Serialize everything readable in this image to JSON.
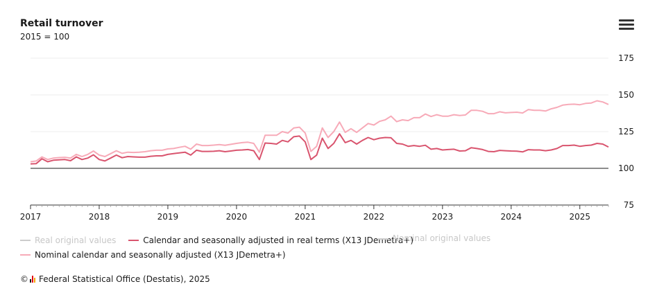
{
  "header": {
    "title": "Retail turnover",
    "subtitle": "2015 = 100"
  },
  "legend": {
    "real_original": "Real original values",
    "real_adjusted": "Calendar and seasonally adjusted in real terms (X13 JDemetra+)",
    "nominal_original": "Nominal original values",
    "nominal_adjusted": "Nominal calendar and seasonally adjusted (X13 JDemetra+)"
  },
  "credits": {
    "text": "Federal Statistical Office (Destatis), 2025",
    "copyright": "©"
  },
  "colors": {
    "real_adjusted": "#d9546e",
    "nominal_adjusted": "#f7aab8",
    "hidden_series": "#cccccc",
    "gridline": "#ececec",
    "reference_line": "#1a1a1a"
  },
  "chart_data": {
    "type": "line",
    "title": "Retail turnover",
    "subtitle": "2015 = 100",
    "x_start": "2017-01",
    "x_step": "month",
    "x_ticks": [
      "2017",
      "2018",
      "2019",
      "2020",
      "2021",
      "2022",
      "2023",
      "2024",
      "2025"
    ],
    "ylim": [
      75,
      175
    ],
    "y_ticks": [
      75,
      100,
      125,
      150,
      175
    ],
    "reference_line": 100,
    "y_axis_position": "right",
    "grid": true,
    "legend_position": "bottom",
    "series": [
      {
        "name": "Calendar and seasonally adjusted in real terms (X13 JDemetra+)",
        "key": "real_adjusted",
        "values": [
          103,
          103.2,
          106.5,
          104.5,
          105.5,
          105.8,
          106,
          105.2,
          107.8,
          106,
          107,
          109.2,
          106,
          105,
          107,
          109,
          107.2,
          108,
          107.8,
          107.6,
          107.6,
          108.2,
          108.5,
          108.5,
          109.5,
          110,
          110.5,
          111,
          109,
          112.3,
          111.5,
          111.5,
          111.6,
          112,
          111.3,
          111.8,
          112.3,
          112.5,
          112.8,
          112,
          106,
          117.2,
          117,
          116.5,
          119,
          118,
          121.5,
          122,
          118,
          106,
          109,
          120.5,
          113.5,
          117,
          123.5,
          117.5,
          119,
          116.5,
          119,
          121,
          119.5,
          120.5,
          121,
          120.8,
          117,
          116.5,
          115,
          115.5,
          115,
          115.7,
          113,
          113.5,
          112.5,
          112.8,
          113,
          111.8,
          112,
          114,
          113.5,
          112.8,
          111.5,
          111.3,
          112.2,
          112,
          111.8,
          111.7,
          111.2,
          112.7,
          112.5,
          112.5,
          112,
          112.5,
          113.5,
          115.5,
          115.5,
          115.8,
          115,
          115.5,
          115.8,
          117,
          116.5,
          114.5
        ]
      },
      {
        "name": "Nominal calendar and seasonally adjusted (X13 JDemetra+)",
        "key": "nominal_adjusted",
        "values": [
          104.5,
          105,
          107.8,
          106,
          107,
          107.3,
          107.5,
          107,
          109.5,
          108,
          109.5,
          111.8,
          109,
          108,
          110,
          112,
          110.2,
          111,
          110.8,
          111,
          111.3,
          112,
          112.3,
          112.3,
          113.2,
          113.5,
          114.3,
          115,
          113,
          116.5,
          115.5,
          115.5,
          115.8,
          116.2,
          115.7,
          116.3,
          117,
          117.5,
          117.8,
          117,
          111,
          122.5,
          122.5,
          122.5,
          125,
          124,
          127.5,
          128,
          124,
          111.5,
          115,
          127.5,
          121,
          125,
          131.5,
          124.5,
          127,
          124.5,
          127.5,
          130.5,
          129.5,
          132,
          133,
          135.5,
          131.8,
          133,
          132.5,
          134.5,
          134.5,
          137,
          135.3,
          136.5,
          135.5,
          135.5,
          136.5,
          136,
          136.3,
          139.5,
          139.5,
          138.8,
          137.2,
          137.2,
          138.5,
          137.8,
          138,
          138.2,
          137.7,
          140,
          139.5,
          139.5,
          139,
          140.5,
          141.5,
          143,
          143.5,
          143.7,
          143.3,
          144.2,
          144.5,
          146,
          145.2,
          143.5
        ]
      }
    ]
  }
}
